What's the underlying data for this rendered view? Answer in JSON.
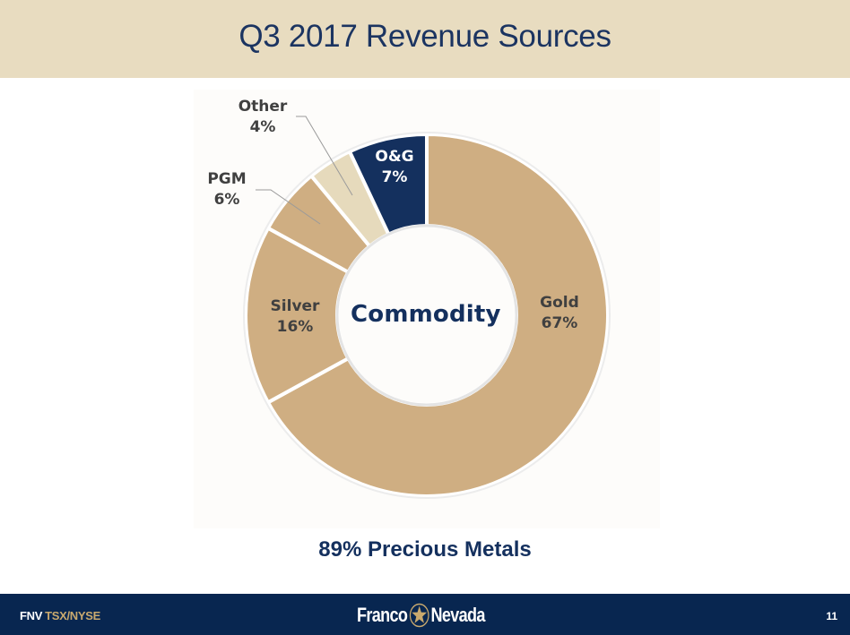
{
  "slide": {
    "title": "Q3 2017 Revenue Sources",
    "subtitle": "89% Precious Metals",
    "page_number": "11"
  },
  "footer": {
    "ticker_symbol": "FNV",
    "exchanges": "TSX/NYSE",
    "logo_left": "Franco",
    "logo_right": "Nevada",
    "logo_icon": "star-in-circle-icon"
  },
  "chart_data": {
    "type": "pie",
    "variant": "donut",
    "title": "Q3 2017 Revenue Sources",
    "center_label": "Commodity",
    "categories": [
      "Gold",
      "Silver",
      "PGM",
      "Other",
      "O&G"
    ],
    "values": [
      67,
      16,
      6,
      4,
      7
    ],
    "value_labels": [
      "67%",
      "16%",
      "6%",
      "4%",
      "7%"
    ],
    "colors": [
      "#cfae82",
      "#cfae82",
      "#cfae82",
      "#e6dabc",
      "#14305e"
    ],
    "start_angle": "12 o'clock",
    "direction": "clockwise (Gold, Silver, PGM, Other, O&G)",
    "annotation": "89% Precious Metals",
    "legend": "none (direct labels; PGM and Other use leader lines)"
  },
  "colors": {
    "header_bg": "#e8dcc0",
    "navy": "#14305e",
    "footer_bg": "#082650",
    "gold_accent": "#c9a96e"
  }
}
